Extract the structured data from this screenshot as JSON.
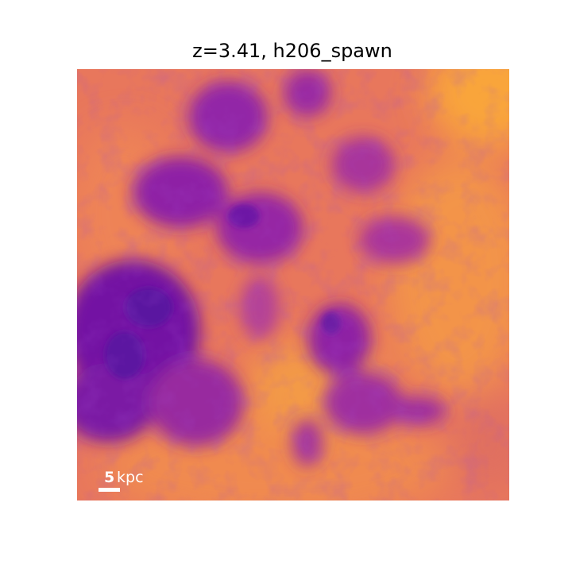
{
  "title": "z=3.41, h206_spawn",
  "scale_bar": {
    "value": "5",
    "unit": "kpc"
  },
  "colormap": {
    "name": "plasma",
    "low": "#5b13a0",
    "mid": "#b43a9c",
    "high": "#f8a23b",
    "base": "#e8775c"
  }
}
